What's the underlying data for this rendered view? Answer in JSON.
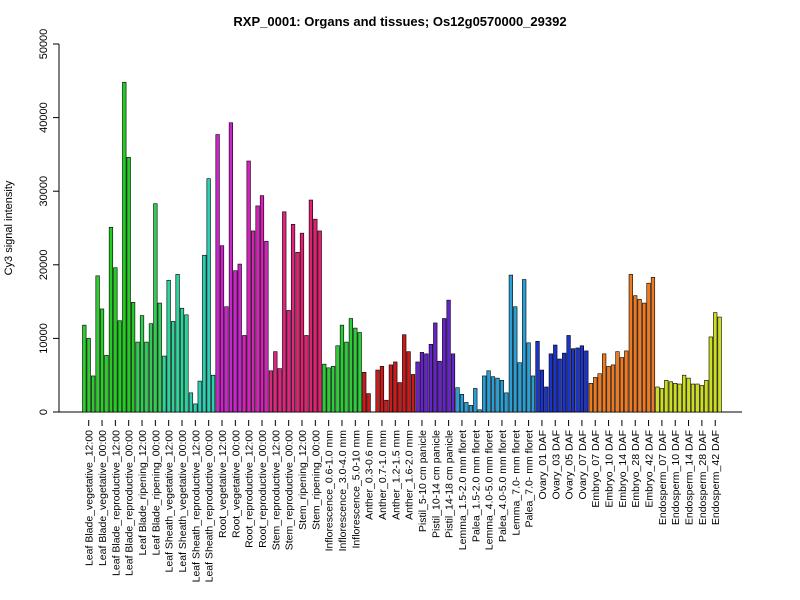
{
  "chart_data": {
    "type": "bar",
    "title": "RXP_0001: Organs and tissues; Os12g0570000_29392",
    "xlabel": "",
    "ylabel": "Cy3 signal intensity",
    "ylim": [
      0,
      50000
    ],
    "yticks": [
      0,
      10000,
      20000,
      30000,
      40000,
      50000
    ],
    "grid": false,
    "legend": "none",
    "groups": [
      {
        "label": "Leaf Blade_vegetative_12:00",
        "color": "#2ecc2e",
        "values": [
          11800,
          10000,
          4900
        ]
      },
      {
        "label": "Leaf Blade_vegetative_00:00",
        "color": "#2ecc2e",
        "values": [
          18500,
          14000,
          7700
        ]
      },
      {
        "label": "Leaf Blade_reproductive_12:00",
        "color": "#22cc22",
        "values": [
          25100,
          19600,
          12400
        ]
      },
      {
        "label": "Leaf Blade_reproductive_00:00",
        "color": "#22cc22",
        "values": [
          44800,
          34600,
          14900
        ]
      },
      {
        "label": "Leaf Blade_ripening_12:00",
        "color": "#33cc55",
        "values": [
          9500,
          13100,
          9500
        ]
      },
      {
        "label": "Leaf Blade_ripening_00:00",
        "color": "#33cc55",
        "values": [
          12000,
          28300,
          14800
        ]
      },
      {
        "label": "Leaf Sheath_vegetative_12:00",
        "color": "#2ed39a",
        "values": [
          7600,
          17900,
          12300
        ]
      },
      {
        "label": "Leaf Sheath_vegetative_00:00",
        "color": "#2ed39a",
        "values": [
          18700,
          14100,
          13200
        ]
      },
      {
        "label": "Leaf Sheath_reproductive_12:00",
        "color": "#2ecfb0",
        "values": [
          2600,
          1100,
          4200
        ]
      },
      {
        "label": "Leaf Sheath_reproductive_00:00",
        "color": "#2ecfb0",
        "values": [
          21300,
          31700,
          5000
        ]
      },
      {
        "label": "Root_vegetative_12:00",
        "color": "#cc22cc",
        "values": [
          37700,
          22600,
          14300
        ]
      },
      {
        "label": "Root_vegetative_00:00",
        "color": "#cc22cc",
        "values": [
          39300,
          19200,
          20100
        ]
      },
      {
        "label": "Root_reproductive_12:00",
        "color": "#d422b8",
        "values": [
          10400,
          34100,
          24600
        ]
      },
      {
        "label": "Root_reproductive_00:00",
        "color": "#d422b8",
        "values": [
          28000,
          29400,
          23200
        ]
      },
      {
        "label": "Stem_reproductive_12:00",
        "color": "#e0257f",
        "values": [
          5600,
          8200,
          5900
        ]
      },
      {
        "label": "Stem_reproductive_00:00",
        "color": "#e0257f",
        "values": [
          27200,
          13800,
          25500
        ]
      },
      {
        "label": "Stem_ripening_12:00",
        "color": "#e02070",
        "values": [
          21700,
          24300,
          10400
        ]
      },
      {
        "label": "Stem_ripening_00:00",
        "color": "#e02070",
        "values": [
          28800,
          26200,
          24600
        ]
      },
      {
        "label": "Inflorescence_0.6-1.0 mm",
        "color": "#2ecc3a",
        "values": [
          6500,
          6000,
          6200
        ]
      },
      {
        "label": "Inflorescence_3.0-4.0 mm",
        "color": "#2ecc3a",
        "values": [
          9000,
          11800,
          9500
        ]
      },
      {
        "label": "Inflorescence_5.0-10 mm",
        "color": "#2ecc3a",
        "values": [
          12700,
          11400,
          10800
        ]
      },
      {
        "label": "Anther_0.3-0.6 mm",
        "color": "#cc1a1a",
        "values": [
          5400,
          2500
        ]
      },
      {
        "label": "Anther_0.7-1.0 mm",
        "color": "#cc1a1a",
        "values": [
          5700,
          6200,
          1600
        ]
      },
      {
        "label": "Anther_1.2-1.5 mm",
        "color": "#cc1a1a",
        "values": [
          6400,
          6800,
          4000
        ]
      },
      {
        "label": "Anther_1.6-2.0 mm",
        "color": "#cc1a1a",
        "values": [
          10500,
          8200,
          5100
        ]
      },
      {
        "label": "Pistil_5-10 cm panicle",
        "color": "#6622cc",
        "values": [
          6800,
          8100,
          7900
        ]
      },
      {
        "label": "Pistil_10-14 cm panicle",
        "color": "#6622cc",
        "values": [
          9200,
          12100,
          6900
        ]
      },
      {
        "label": "Pistil_14-18 cm panicle",
        "color": "#6622cc",
        "values": [
          12700,
          15200,
          7900
        ]
      },
      {
        "label": "Lemma_1.5-2.0 mm floret",
        "color": "#2a9fd6",
        "values": [
          3300,
          2400,
          1300
        ]
      },
      {
        "label": "Palea_1.5-2.0 mm floret",
        "color": "#2a9fd6",
        "values": [
          900,
          3200,
          300
        ]
      },
      {
        "label": "Lemma_4.0-5.0 mm floret",
        "color": "#2a9fd6",
        "values": [
          4900,
          5600,
          4800
        ]
      },
      {
        "label": "Palea_4.0-5.0 mm floret",
        "color": "#2a9fd6",
        "values": [
          4600,
          4300,
          2600
        ]
      },
      {
        "label": "Lemma_7.0- mm floret",
        "color": "#2a9fd6",
        "values": [
          18600,
          14300,
          6700
        ]
      },
      {
        "label": "Palea_7.0- mm floret",
        "color": "#2a9fd6",
        "values": [
          18000,
          9400,
          4900
        ]
      },
      {
        "label": "Ovary_01 DAF",
        "color": "#1a33cc",
        "values": [
          9600,
          5700,
          3400
        ]
      },
      {
        "label": "Ovary_03 DAF",
        "color": "#1a33cc",
        "values": [
          7900,
          9100,
          7200
        ]
      },
      {
        "label": "Ovary_05 DAF",
        "color": "#1a33cc",
        "values": [
          8000,
          10400,
          8600
        ]
      },
      {
        "label": "Ovary_07 DAF",
        "color": "#1a33cc",
        "values": [
          8700,
          9000,
          8300
        ]
      },
      {
        "label": "Embryo_07 DAF",
        "color": "#ee7a22",
        "values": [
          3900,
          4700,
          5200
        ]
      },
      {
        "label": "Embryo_10 DAF",
        "color": "#ee7a22",
        "values": [
          7900,
          6200,
          6400
        ]
      },
      {
        "label": "Embryo_14 DAF",
        "color": "#ee7a22",
        "values": [
          8200,
          7400,
          8300
        ]
      },
      {
        "label": "Embryo_28 DAF",
        "color": "#ee7a22",
        "values": [
          18700,
          15800,
          15300
        ]
      },
      {
        "label": "Embryo_42 DAF",
        "color": "#ee7a22",
        "values": [
          14800,
          17500,
          18300
        ]
      },
      {
        "label": "Endosperm_07 DAF",
        "color": "#ccdd22",
        "values": [
          3400,
          3200,
          4300
        ]
      },
      {
        "label": "Endosperm_10 DAF",
        "color": "#ccdd22",
        "values": [
          4100,
          3900,
          3800
        ]
      },
      {
        "label": "Endosperm_14 DAF",
        "color": "#ccdd22",
        "values": [
          5000,
          4600,
          3800
        ]
      },
      {
        "label": "Endosperm_28 DAF",
        "color": "#ccdd22",
        "values": [
          3800,
          3600,
          4300
        ]
      },
      {
        "label": "Endosperm_42 DAF",
        "color": "#ccdd22",
        "values": [
          10200,
          13500,
          12900
        ]
      }
    ]
  }
}
